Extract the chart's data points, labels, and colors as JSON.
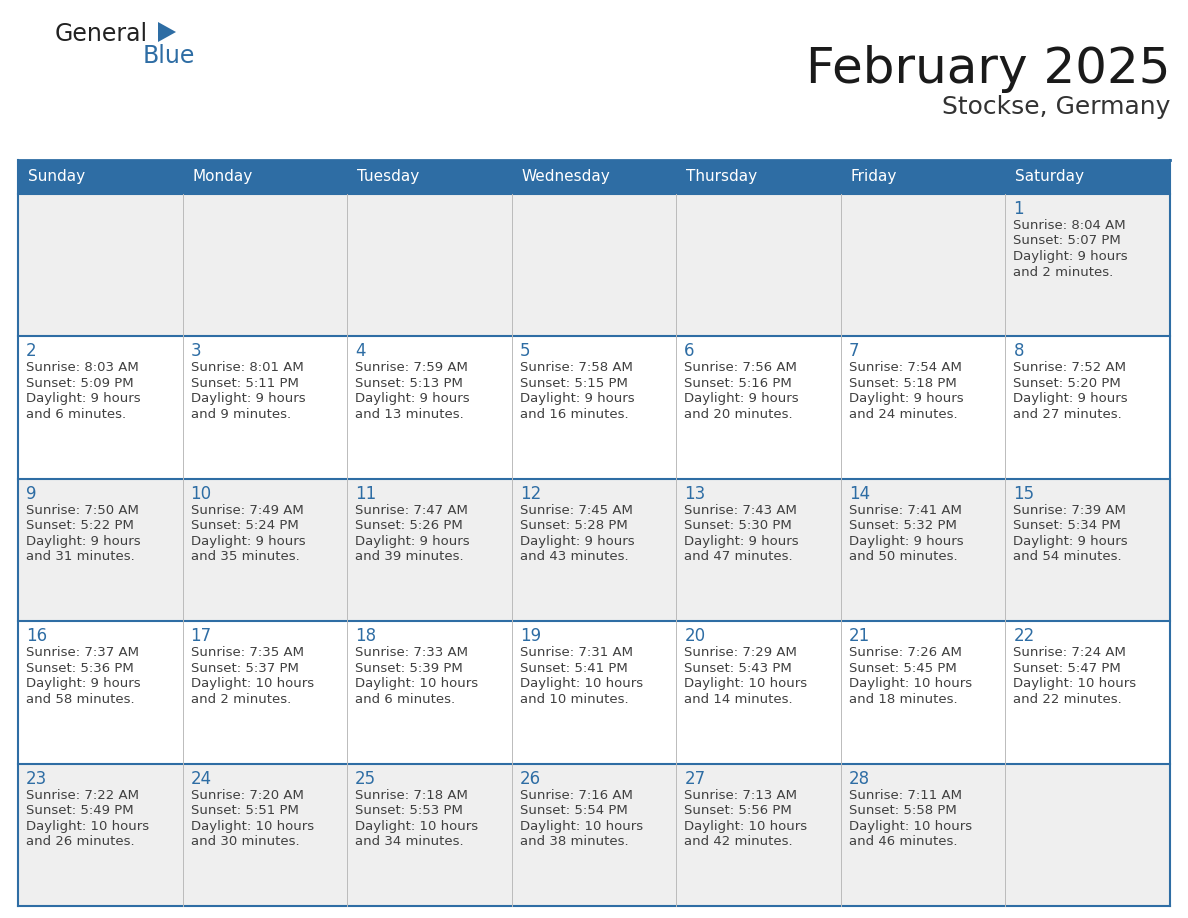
{
  "title": "February 2025",
  "subtitle": "Stockse, Germany",
  "header_bg": "#2E6DA4",
  "header_text_color": "#FFFFFF",
  "day_names": [
    "Sunday",
    "Monday",
    "Tuesday",
    "Wednesday",
    "Thursday",
    "Friday",
    "Saturday"
  ],
  "bg_color": "#FFFFFF",
  "row_bg_odd": "#EFEFEF",
  "row_bg_even": "#FFFFFF",
  "day_num_color": "#2E6DA4",
  "text_color": "#404040",
  "border_color": "#2E6DA4",
  "divider_color": "#BBBBBB",
  "logo_general_color": "#222222",
  "logo_blue_color": "#2E6DA4",
  "calendar": [
    [
      null,
      null,
      null,
      null,
      null,
      null,
      {
        "day": "1",
        "sunrise": "Sunrise: 8:04 AM",
        "sunset": "Sunset: 5:07 PM",
        "daylight": "Daylight: 9 hours",
        "daylight2": "and 2 minutes."
      }
    ],
    [
      {
        "day": "2",
        "sunrise": "Sunrise: 8:03 AM",
        "sunset": "Sunset: 5:09 PM",
        "daylight": "Daylight: 9 hours",
        "daylight2": "and 6 minutes."
      },
      {
        "day": "3",
        "sunrise": "Sunrise: 8:01 AM",
        "sunset": "Sunset: 5:11 PM",
        "daylight": "Daylight: 9 hours",
        "daylight2": "and 9 minutes."
      },
      {
        "day": "4",
        "sunrise": "Sunrise: 7:59 AM",
        "sunset": "Sunset: 5:13 PM",
        "daylight": "Daylight: 9 hours",
        "daylight2": "and 13 minutes."
      },
      {
        "day": "5",
        "sunrise": "Sunrise: 7:58 AM",
        "sunset": "Sunset: 5:15 PM",
        "daylight": "Daylight: 9 hours",
        "daylight2": "and 16 minutes."
      },
      {
        "day": "6",
        "sunrise": "Sunrise: 7:56 AM",
        "sunset": "Sunset: 5:16 PM",
        "daylight": "Daylight: 9 hours",
        "daylight2": "and 20 minutes."
      },
      {
        "day": "7",
        "sunrise": "Sunrise: 7:54 AM",
        "sunset": "Sunset: 5:18 PM",
        "daylight": "Daylight: 9 hours",
        "daylight2": "and 24 minutes."
      },
      {
        "day": "8",
        "sunrise": "Sunrise: 7:52 AM",
        "sunset": "Sunset: 5:20 PM",
        "daylight": "Daylight: 9 hours",
        "daylight2": "and 27 minutes."
      }
    ],
    [
      {
        "day": "9",
        "sunrise": "Sunrise: 7:50 AM",
        "sunset": "Sunset: 5:22 PM",
        "daylight": "Daylight: 9 hours",
        "daylight2": "and 31 minutes."
      },
      {
        "day": "10",
        "sunrise": "Sunrise: 7:49 AM",
        "sunset": "Sunset: 5:24 PM",
        "daylight": "Daylight: 9 hours",
        "daylight2": "and 35 minutes."
      },
      {
        "day": "11",
        "sunrise": "Sunrise: 7:47 AM",
        "sunset": "Sunset: 5:26 PM",
        "daylight": "Daylight: 9 hours",
        "daylight2": "and 39 minutes."
      },
      {
        "day": "12",
        "sunrise": "Sunrise: 7:45 AM",
        "sunset": "Sunset: 5:28 PM",
        "daylight": "Daylight: 9 hours",
        "daylight2": "and 43 minutes."
      },
      {
        "day": "13",
        "sunrise": "Sunrise: 7:43 AM",
        "sunset": "Sunset: 5:30 PM",
        "daylight": "Daylight: 9 hours",
        "daylight2": "and 47 minutes."
      },
      {
        "day": "14",
        "sunrise": "Sunrise: 7:41 AM",
        "sunset": "Sunset: 5:32 PM",
        "daylight": "Daylight: 9 hours",
        "daylight2": "and 50 minutes."
      },
      {
        "day": "15",
        "sunrise": "Sunrise: 7:39 AM",
        "sunset": "Sunset: 5:34 PM",
        "daylight": "Daylight: 9 hours",
        "daylight2": "and 54 minutes."
      }
    ],
    [
      {
        "day": "16",
        "sunrise": "Sunrise: 7:37 AM",
        "sunset": "Sunset: 5:36 PM",
        "daylight": "Daylight: 9 hours",
        "daylight2": "and 58 minutes."
      },
      {
        "day": "17",
        "sunrise": "Sunrise: 7:35 AM",
        "sunset": "Sunset: 5:37 PM",
        "daylight": "Daylight: 10 hours",
        "daylight2": "and 2 minutes."
      },
      {
        "day": "18",
        "sunrise": "Sunrise: 7:33 AM",
        "sunset": "Sunset: 5:39 PM",
        "daylight": "Daylight: 10 hours",
        "daylight2": "and 6 minutes."
      },
      {
        "day": "19",
        "sunrise": "Sunrise: 7:31 AM",
        "sunset": "Sunset: 5:41 PM",
        "daylight": "Daylight: 10 hours",
        "daylight2": "and 10 minutes."
      },
      {
        "day": "20",
        "sunrise": "Sunrise: 7:29 AM",
        "sunset": "Sunset: 5:43 PM",
        "daylight": "Daylight: 10 hours",
        "daylight2": "and 14 minutes."
      },
      {
        "day": "21",
        "sunrise": "Sunrise: 7:26 AM",
        "sunset": "Sunset: 5:45 PM",
        "daylight": "Daylight: 10 hours",
        "daylight2": "and 18 minutes."
      },
      {
        "day": "22",
        "sunrise": "Sunrise: 7:24 AM",
        "sunset": "Sunset: 5:47 PM",
        "daylight": "Daylight: 10 hours",
        "daylight2": "and 22 minutes."
      }
    ],
    [
      {
        "day": "23",
        "sunrise": "Sunrise: 7:22 AM",
        "sunset": "Sunset: 5:49 PM",
        "daylight": "Daylight: 10 hours",
        "daylight2": "and 26 minutes."
      },
      {
        "day": "24",
        "sunrise": "Sunrise: 7:20 AM",
        "sunset": "Sunset: 5:51 PM",
        "daylight": "Daylight: 10 hours",
        "daylight2": "and 30 minutes."
      },
      {
        "day": "25",
        "sunrise": "Sunrise: 7:18 AM",
        "sunset": "Sunset: 5:53 PM",
        "daylight": "Daylight: 10 hours",
        "daylight2": "and 34 minutes."
      },
      {
        "day": "26",
        "sunrise": "Sunrise: 7:16 AM",
        "sunset": "Sunset: 5:54 PM",
        "daylight": "Daylight: 10 hours",
        "daylight2": "and 38 minutes."
      },
      {
        "day": "27",
        "sunrise": "Sunrise: 7:13 AM",
        "sunset": "Sunset: 5:56 PM",
        "daylight": "Daylight: 10 hours",
        "daylight2": "and 42 minutes."
      },
      {
        "day": "28",
        "sunrise": "Sunrise: 7:11 AM",
        "sunset": "Sunset: 5:58 PM",
        "daylight": "Daylight: 10 hours",
        "daylight2": "and 46 minutes."
      },
      null
    ]
  ]
}
